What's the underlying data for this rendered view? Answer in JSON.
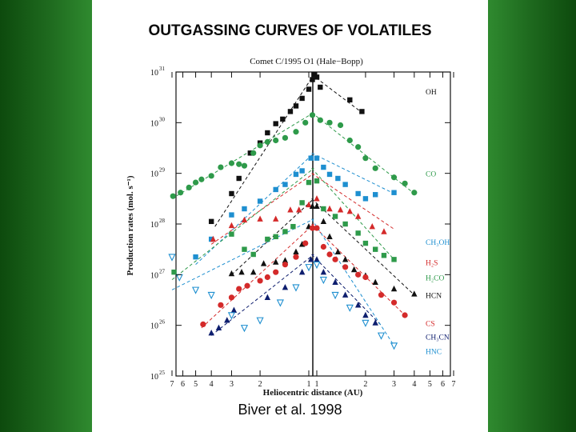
{
  "slide": {
    "title": "OUTGASSING CURVES OF VOLATILES",
    "citation": "Biver et al. 1998"
  },
  "chart_data": {
    "type": "scatter",
    "title": "Comet C/1995 O1 (Hale−Bopp)",
    "xlabel": "Heliocentric distance (AU)",
    "ylabel": "Production rates (mol. s⁻¹)",
    "y_scale": "log",
    "ylim": [
      25,
      31
    ],
    "y_ticks": [
      {
        "exp": 31,
        "label": "10",
        "sup": "31"
      },
      {
        "exp": 30,
        "label": "10",
        "sup": "30"
      },
      {
        "exp": 29,
        "label": "10",
        "sup": "29"
      },
      {
        "exp": 28,
        "label": "10",
        "sup": "28"
      },
      {
        "exp": 27,
        "label": "10",
        "sup": "27"
      },
      {
        "exp": 26,
        "label": "10",
        "sup": "26"
      },
      {
        "exp": 25,
        "label": "10",
        "sup": "25"
      }
    ],
    "x_axis": "heliocentric distance, pre-perihelion on left (7 to 1 AU), post-perihelion on right (1 to 7 AU)",
    "x_ticks": [
      {
        "side": "pre",
        "au": 7,
        "label": "7"
      },
      {
        "side": "pre",
        "au": 6,
        "label": "6"
      },
      {
        "side": "pre",
        "au": 5,
        "label": "5"
      },
      {
        "side": "pre",
        "au": 4,
        "label": "4"
      },
      {
        "side": "pre",
        "au": 3,
        "label": "3"
      },
      {
        "side": "pre",
        "au": 2,
        "label": "2"
      },
      {
        "side": "pre",
        "au": 1,
        "label": "1"
      },
      {
        "side": "post",
        "au": 1,
        "label": "1"
      },
      {
        "side": "post",
        "au": 2,
        "label": "2"
      },
      {
        "side": "post",
        "au": 3,
        "label": "3"
      },
      {
        "side": "post",
        "au": 4,
        "label": "4"
      },
      {
        "side": "post",
        "au": 5,
        "label": "5"
      },
      {
        "side": "post",
        "au": 6,
        "label": "6"
      },
      {
        "side": "post",
        "au": 7,
        "label": "7"
      }
    ],
    "series": [
      {
        "name": "OH",
        "color": "#111111",
        "marker": "square",
        "fit_pre": [
          [
            3.8,
            27.95
          ],
          [
            0.93,
            30.95
          ]
        ],
        "fit_post": [
          [
            0.93,
            30.95
          ],
          [
            1.9,
            30.2
          ]
        ],
        "points": [
          [
            -4.0,
            28.05
          ],
          [
            -3.0,
            28.6
          ],
          [
            -2.7,
            28.9
          ],
          [
            -2.3,
            29.4
          ],
          [
            -2.0,
            29.6
          ],
          [
            -1.8,
            29.8
          ],
          [
            -1.6,
            29.98
          ],
          [
            -1.45,
            30.07
          ],
          [
            -1.3,
            30.22
          ],
          [
            -1.2,
            30.33
          ],
          [
            -1.1,
            30.48
          ],
          [
            -1.0,
            30.66
          ],
          [
            -0.95,
            30.85
          ],
          [
            -0.93,
            30.95
          ],
          [
            1.0,
            30.9
          ],
          [
            1.05,
            30.7
          ],
          [
            1.6,
            30.45
          ],
          [
            1.9,
            30.22
          ]
        ]
      },
      {
        "name": "CO",
        "color": "#2e9a4a",
        "marker": "circle",
        "fit_pre": [
          [
            7.0,
            28.5
          ],
          [
            0.93,
            30.2
          ]
        ],
        "fit_post": [
          [
            0.93,
            30.2
          ],
          [
            4.0,
            28.6
          ]
        ],
        "points": [
          [
            -6.9,
            28.55
          ],
          [
            -6.2,
            28.62
          ],
          [
            -5.5,
            28.72
          ],
          [
            -5.0,
            28.82
          ],
          [
            -4.6,
            28.88
          ],
          [
            -4.0,
            28.95
          ],
          [
            -3.5,
            29.12
          ],
          [
            -3.0,
            29.2
          ],
          [
            -2.7,
            29.18
          ],
          [
            -2.5,
            29.15
          ],
          [
            -2.2,
            29.4
          ],
          [
            -2.0,
            29.55
          ],
          [
            -1.8,
            29.62
          ],
          [
            -1.6,
            29.65
          ],
          [
            -1.4,
            29.7
          ],
          [
            -1.2,
            29.82
          ],
          [
            -1.05,
            30.0
          ],
          [
            -0.95,
            30.15
          ],
          [
            1.05,
            30.05
          ],
          [
            1.2,
            30.0
          ],
          [
            1.4,
            29.95
          ],
          [
            1.6,
            29.65
          ],
          [
            1.8,
            29.52
          ],
          [
            2.0,
            29.3
          ],
          [
            2.3,
            29.1
          ],
          [
            3.0,
            28.92
          ],
          [
            3.5,
            28.8
          ],
          [
            4.0,
            28.62
          ]
        ]
      },
      {
        "name": "CH₃OH",
        "color": "#1e8fd0",
        "marker": "square",
        "fit_pre": [
          [
            5.0,
            27.2
          ],
          [
            0.93,
            29.4
          ]
        ],
        "fit_post": [
          [
            0.93,
            29.4
          ],
          [
            3.0,
            28.6
          ]
        ],
        "points": [
          [
            -5.0,
            27.35
          ],
          [
            -4.0,
            27.7
          ],
          [
            -3.0,
            28.18
          ],
          [
            -2.5,
            28.3
          ],
          [
            -2.0,
            28.45
          ],
          [
            -1.6,
            28.68
          ],
          [
            -1.4,
            28.78
          ],
          [
            -1.2,
            28.98
          ],
          [
            -1.1,
            29.05
          ],
          [
            -0.97,
            29.3
          ],
          [
            1.0,
            29.3
          ],
          [
            1.1,
            29.12
          ],
          [
            1.2,
            28.98
          ],
          [
            1.35,
            28.9
          ],
          [
            1.5,
            28.78
          ],
          [
            1.8,
            28.6
          ],
          [
            2.0,
            28.5
          ],
          [
            2.3,
            28.58
          ],
          [
            3.0,
            28.62
          ]
        ]
      },
      {
        "name": "H₂S",
        "color": "#d42a2a",
        "marker": "triangle",
        "fit_pre": [
          [
            4.0,
            27.6
          ],
          [
            0.93,
            29.0
          ]
        ],
        "fit_post": [
          [
            0.93,
            29.0
          ],
          [
            3.0,
            27.9
          ]
        ],
        "points": [
          [
            -3.9,
            27.7
          ],
          [
            -3.0,
            27.97
          ],
          [
            -2.5,
            28.08
          ],
          [
            -2.0,
            28.1
          ],
          [
            -1.6,
            28.1
          ],
          [
            -1.3,
            28.28
          ],
          [
            -1.15,
            28.28
          ],
          [
            -1.0,
            28.38
          ],
          [
            1.0,
            28.5
          ],
          [
            1.2,
            28.3
          ],
          [
            1.4,
            28.28
          ],
          [
            1.6,
            28.25
          ],
          [
            1.8,
            28.15
          ],
          [
            2.2,
            27.95
          ],
          [
            2.6,
            27.85
          ]
        ]
      },
      {
        "name": "H₂CO",
        "color": "#2e9a4a",
        "marker": "square",
        "fit_pre": [
          [
            7.0,
            26.9
          ],
          [
            0.93,
            29.1
          ]
        ],
        "fit_post": [
          [
            0.93,
            29.1
          ],
          [
            3.0,
            27.3
          ]
        ],
        "points": [
          [
            -6.8,
            27.05
          ],
          [
            -3.0,
            27.8
          ],
          [
            -2.5,
            27.5
          ],
          [
            -2.2,
            27.4
          ],
          [
            -1.8,
            27.7
          ],
          [
            -1.6,
            27.75
          ],
          [
            -1.4,
            27.85
          ],
          [
            -1.25,
            27.95
          ],
          [
            -1.1,
            28.42
          ],
          [
            -1.0,
            28.82
          ],
          [
            1.0,
            28.85
          ],
          [
            1.1,
            28.3
          ],
          [
            1.3,
            28.15
          ],
          [
            1.5,
            28.0
          ],
          [
            1.8,
            27.82
          ],
          [
            2.0,
            27.62
          ],
          [
            2.3,
            27.5
          ],
          [
            2.6,
            27.38
          ],
          [
            3.0,
            27.3
          ]
        ]
      },
      {
        "name": "HCN",
        "color": "#111111",
        "marker": "triangle",
        "fit_pre": [
          [
            3.0,
            27.0
          ],
          [
            0.93,
            28.5
          ]
        ],
        "fit_post": [
          [
            0.93,
            28.5
          ],
          [
            4.0,
            26.6
          ]
        ],
        "points": [
          [
            -3.0,
            27.02
          ],
          [
            -2.6,
            27.05
          ],
          [
            -2.2,
            27.05
          ],
          [
            -1.9,
            27.22
          ],
          [
            -1.6,
            27.25
          ],
          [
            -1.4,
            27.28
          ],
          [
            -1.2,
            27.45
          ],
          [
            -1.1,
            27.6
          ],
          [
            -1.0,
            27.95
          ],
          [
            -0.95,
            28.35
          ],
          [
            1.0,
            28.35
          ],
          [
            1.1,
            28.05
          ],
          [
            1.2,
            27.75
          ],
          [
            1.35,
            27.45
          ],
          [
            1.5,
            27.3
          ],
          [
            1.7,
            27.1
          ],
          [
            2.0,
            26.98
          ],
          [
            2.3,
            26.85
          ],
          [
            3.0,
            26.72
          ],
          [
            4.0,
            26.62
          ]
        ]
      },
      {
        "name": "CS",
        "color": "#d42a2a",
        "marker": "circle",
        "fit_pre": [
          [
            4.6,
            25.95
          ],
          [
            0.93,
            28.0
          ]
        ],
        "fit_post": [
          [
            0.93,
            28.0
          ],
          [
            3.5,
            26.2
          ]
        ],
        "points": [
          [
            -4.5,
            26.02
          ],
          [
            -3.5,
            26.4
          ],
          [
            -3.0,
            26.55
          ],
          [
            -2.7,
            26.72
          ],
          [
            -2.4,
            26.78
          ],
          [
            -2.0,
            26.88
          ],
          [
            -1.8,
            26.95
          ],
          [
            -1.6,
            27.05
          ],
          [
            -1.4,
            27.2
          ],
          [
            -1.2,
            27.35
          ],
          [
            -1.05,
            27.62
          ],
          [
            -0.95,
            27.92
          ],
          [
            1.0,
            27.92
          ],
          [
            1.1,
            27.55
          ],
          [
            1.2,
            27.4
          ],
          [
            1.3,
            27.3
          ],
          [
            1.5,
            27.15
          ],
          [
            1.8,
            27.0
          ],
          [
            2.0,
            26.95
          ],
          [
            2.5,
            26.6
          ],
          [
            3.0,
            26.45
          ],
          [
            3.5,
            26.2
          ]
        ]
      },
      {
        "name": "CH₃CN",
        "color": "#0e1e6e",
        "marker": "triangle",
        "fit_pre": [
          [
            4.0,
            25.8
          ],
          [
            0.93,
            27.4
          ]
        ],
        "fit_post": [
          [
            0.93,
            27.4
          ],
          [
            2.5,
            26.0
          ]
        ],
        "points": [
          [
            -4.0,
            25.85
          ],
          [
            -3.6,
            25.95
          ],
          [
            -3.2,
            26.1
          ],
          [
            -2.9,
            26.3
          ],
          [
            -1.8,
            26.55
          ],
          [
            -1.4,
            26.75
          ],
          [
            -1.1,
            27.05
          ],
          [
            -0.97,
            27.3
          ],
          [
            1.0,
            27.3
          ],
          [
            1.1,
            27.05
          ],
          [
            1.3,
            26.85
          ],
          [
            1.5,
            26.6
          ],
          [
            1.8,
            26.4
          ],
          [
            2.0,
            26.2
          ],
          [
            2.3,
            26.05
          ]
        ]
      },
      {
        "name": "HNC",
        "color": "#1e8fd0",
        "marker": "triangle-down",
        "fit_pre": [
          [
            7.0,
            26.7
          ],
          [
            0.93,
            28.1
          ]
        ],
        "fit_post": [
          [
            0.93,
            28.1
          ],
          [
            3.0,
            25.6
          ]
        ],
        "points": [
          [
            -7.0,
            27.35
          ],
          [
            -6.3,
            26.95
          ],
          [
            -5.0,
            26.7
          ],
          [
            -4.0,
            26.6
          ],
          [
            -3.0,
            26.2
          ],
          [
            -2.5,
            25.95
          ],
          [
            -2.0,
            26.1
          ],
          [
            -1.5,
            26.45
          ],
          [
            -1.2,
            26.75
          ],
          [
            -1.0,
            27.15
          ],
          [
            1.0,
            27.2
          ],
          [
            1.1,
            26.9
          ],
          [
            1.3,
            26.6
          ],
          [
            1.6,
            26.35
          ],
          [
            2.0,
            26.05
          ],
          [
            2.5,
            25.8
          ],
          [
            3.0,
            25.6
          ]
        ]
      }
    ]
  }
}
